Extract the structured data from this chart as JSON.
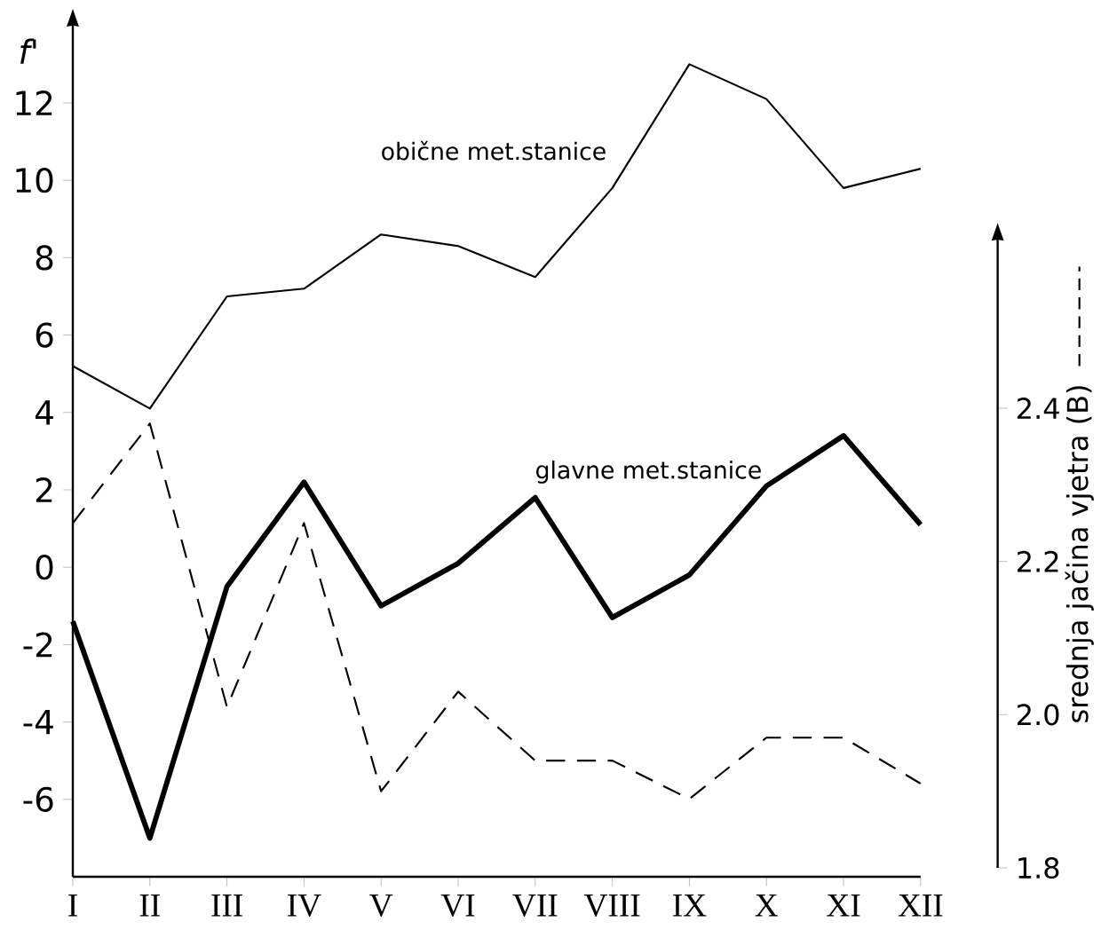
{
  "chart_data": {
    "type": "line",
    "categories": [
      "I",
      "II",
      "III",
      "IV",
      "V",
      "VI",
      "VII",
      "VIII",
      "IX",
      "X",
      "XI",
      "XII"
    ],
    "ylabel": "f'",
    "y2label": "srednja jačina vjetra (B)",
    "ylim": [
      -8,
      14
    ],
    "yticks": [
      -6,
      -4,
      -2,
      0,
      2,
      4,
      6,
      8,
      10,
      12
    ],
    "y2lim": [
      1.8,
      2.62
    ],
    "y2ticks": [
      1.8,
      {
        "value": 2.0,
        "label": "2.0"
      },
      2.2,
      2.4
    ],
    "series": [
      {
        "name": "obične met.stanice",
        "color": "#000000",
        "line_style": "solid",
        "values": [
          5.2,
          4.1,
          7.0,
          7.2,
          8.6,
          8.3,
          7.5,
          9.8,
          13.0,
          12.1,
          9.8,
          10.3
        ]
      },
      {
        "name": "glavne met.stanice",
        "color": "#000000",
        "line_style": "solid",
        "values": [
          -1.4,
          -7.0,
          -0.5,
          2.2,
          -1.0,
          0.1,
          1.8,
          -1.3,
          -0.2,
          2.1,
          3.4,
          1.1
        ]
      },
      {
        "color": "#000000",
        "line_style": "dashed",
        "axis": "y2",
        "values": [
          2.25,
          2.38,
          2.01,
          2.25,
          1.9,
          2.03,
          1.94,
          1.94,
          1.89,
          1.97,
          1.97,
          1.91
        ]
      }
    ]
  }
}
